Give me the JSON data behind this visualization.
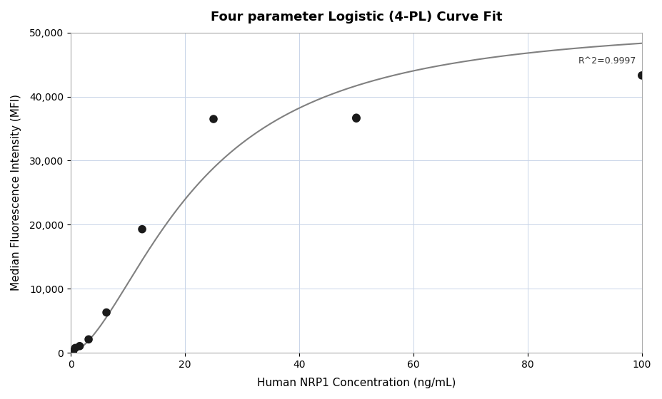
{
  "title": "Four parameter Logistic (4-PL) Curve Fit",
  "xlabel": "Human NRP1 Concentration (ng/mL)",
  "ylabel": "Median Fluorescence Intensity (MFI)",
  "scatter_x": [
    0.4,
    0.78,
    1.56,
    3.125,
    6.25,
    12.5,
    25.0,
    50.0,
    50.0,
    100.0
  ],
  "scatter_y": [
    200,
    750,
    1050,
    2100,
    6300,
    19300,
    36500,
    36600,
    36700,
    43300
  ],
  "xlim": [
    0,
    100
  ],
  "ylim": [
    0,
    50000
  ],
  "yticks": [
    0,
    10000,
    20000,
    30000,
    40000,
    50000
  ],
  "xticks": [
    0,
    20,
    40,
    60,
    80,
    100
  ],
  "r2_text": "R^2=0.9997",
  "scatter_color": "#1a1a1a",
  "scatter_size": 70,
  "line_color": "#808080",
  "line_width": 1.5,
  "grid_color": "#c8d4e8",
  "background_color": "#ffffff",
  "title_fontsize": 13,
  "label_fontsize": 11,
  "tick_fontsize": 10
}
